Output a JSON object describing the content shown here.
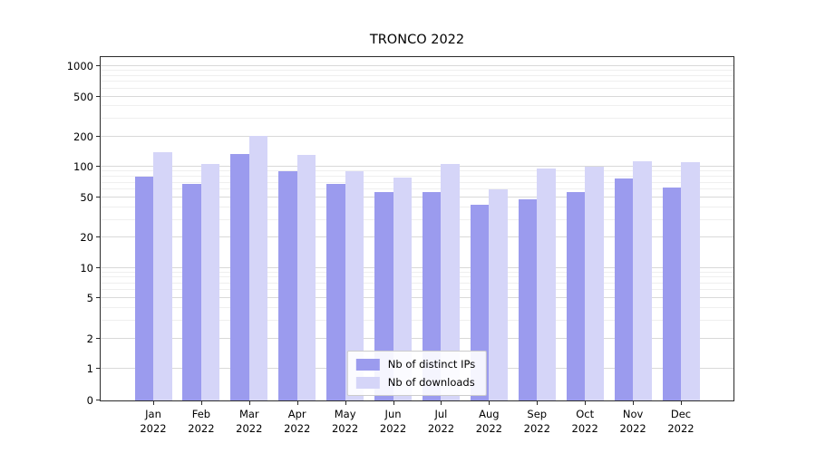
{
  "chart_data": {
    "type": "bar",
    "title": "TRONCO 2022",
    "xlabel": "",
    "ylabel": "",
    "yscale": "symlog",
    "ylim": [
      0,
      1000
    ],
    "yticks": [
      0,
      1,
      2,
      5,
      10,
      20,
      50,
      100,
      200,
      500,
      1000
    ],
    "grid": "on",
    "legend_position": "lower center",
    "categories": [
      "Jan\n2022",
      "Feb\n2022",
      "Mar\n2022",
      "Apr\n2022",
      "May\n2022",
      "Jun\n2022",
      "Jul\n2022",
      "Aug\n2022",
      "Sep\n2022",
      "Oct\n2022",
      "Nov\n2022",
      "Dec\n2022"
    ],
    "series": [
      {
        "name": "Nb of distinct IPs",
        "color": "#9b9bee",
        "values": [
          80,
          68,
          135,
          90,
          68,
          57,
          56,
          42,
          48,
          57,
          77,
          62
        ]
      },
      {
        "name": "Nb of downloads",
        "color": "#d5d5f8",
        "values": [
          140,
          108,
          205,
          133,
          90,
          78,
          107,
          60,
          97,
          100,
          115,
          112
        ]
      }
    ]
  }
}
